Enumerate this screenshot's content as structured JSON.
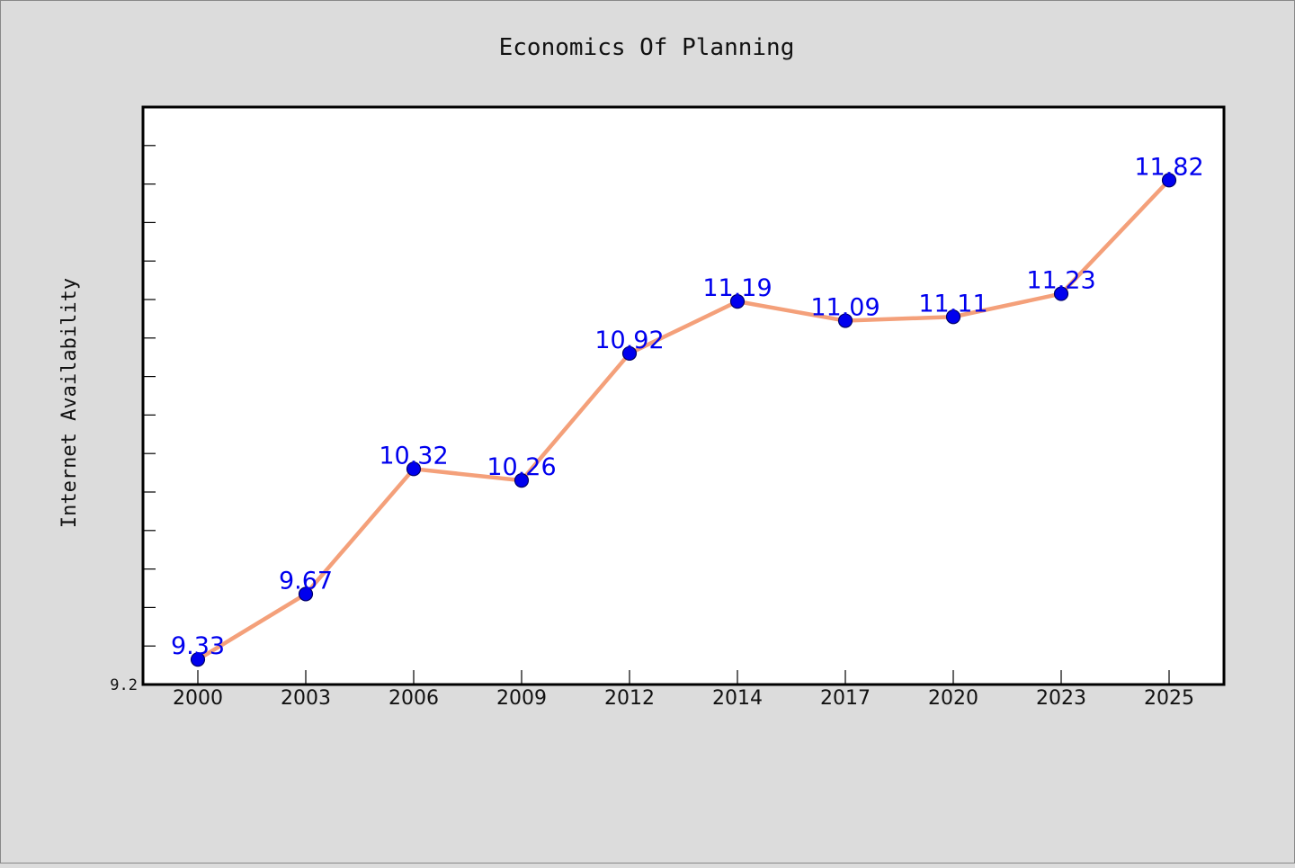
{
  "chart_data": {
    "type": "line",
    "title": "Economics Of Planning",
    "xlabel": "",
    "ylabel": "Internet Availability",
    "categories": [
      "2000",
      "2003",
      "2006",
      "2009",
      "2012",
      "2014",
      "2017",
      "2020",
      "2023",
      "2025"
    ],
    "series": [
      {
        "values": [
          9.33,
          9.67,
          10.32,
          10.26,
          10.92,
          11.19,
          11.09,
          11.11,
          11.23,
          11.82
        ]
      }
    ],
    "data_labels": [
      "9.33",
      "9.67",
      "10.32",
      "10.26",
      "10.92",
      "11.19",
      "11.09",
      "11.11",
      "11.23",
      "11.82"
    ],
    "ylim": [
      9.2,
      12.2
    ],
    "y_tick_labels": [
      "9.2"
    ],
    "grid": false,
    "colors": {
      "background": "#dcdcdc",
      "plot_background": "#ffffff",
      "line": "#f4a07a",
      "marker": "#0000ee",
      "marker_edge": "#000066",
      "data_label": "#0000ee",
      "axis": "#000000"
    }
  }
}
